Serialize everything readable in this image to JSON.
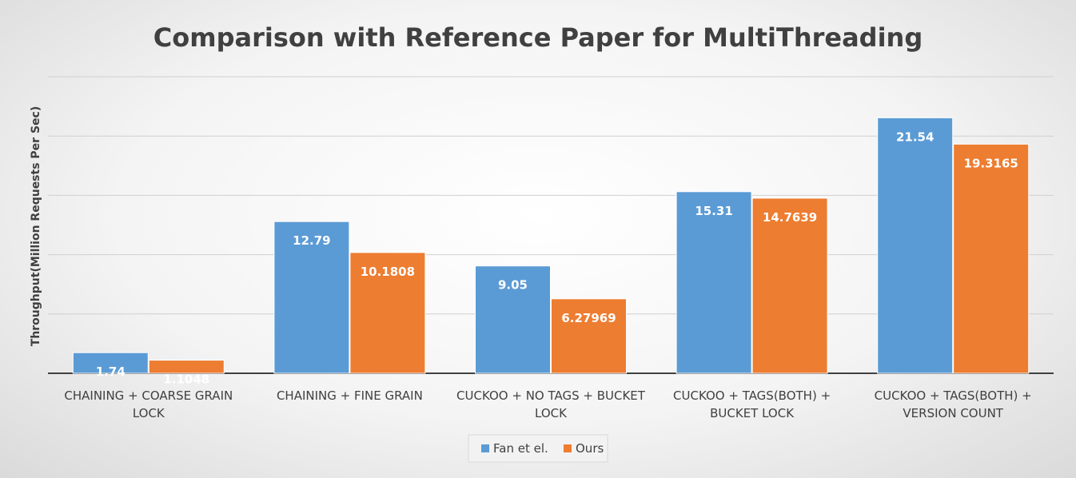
{
  "chart_data": {
    "type": "bar",
    "title": "Comparison with Reference Paper for MultiThreading",
    "ylabel": "Throughput(Million Requests Per Sec)",
    "xlabel": "",
    "categories": [
      [
        "CHAINING + COARSE GRAIN",
        "LOCK"
      ],
      [
        "CHAINING + FINE GRAIN"
      ],
      [
        "CUCKOO + NO TAGS + BUCKET",
        "LOCK"
      ],
      [
        "CUCKOO + TAGS(BOTH) +",
        "BUCKET LOCK"
      ],
      [
        "CUCKOO + TAGS(BOTH) +",
        "VERSION COUNT"
      ]
    ],
    "series": [
      {
        "name": "Fan et el.",
        "color": "#5b9bd5",
        "values": [
          1.74,
          12.79,
          9.05,
          15.31,
          21.54
        ],
        "labels": [
          "1.74",
          "12.79",
          "9.05",
          "15.31",
          "21.54"
        ]
      },
      {
        "name": "Ours",
        "color": "#ed7d31",
        "values": [
          1.1048,
          10.1808,
          6.27969,
          14.7639,
          19.3165
        ],
        "labels": [
          "1.1048",
          "10.1808",
          "6.27969",
          "14.7639",
          "19.3165"
        ]
      }
    ],
    "ylim": [
      0,
      25
    ],
    "gridlines": [
      5,
      10,
      15,
      20,
      25
    ],
    "y_tick_labels_shown": false,
    "grid": true,
    "legend_position": "bottom",
    "data_labels": "inside-top"
  }
}
